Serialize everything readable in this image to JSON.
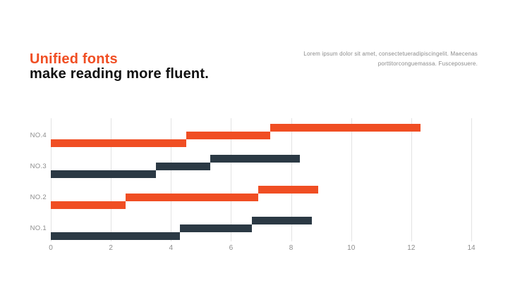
{
  "header": {
    "title_line1": "Unified fonts",
    "title_line2": "make reading more fluent.",
    "note_line1": "Lorem ipsum dolor sit amet, consectetueradipiscingelit. Maecenas",
    "note_line2": "porttitorconguemassa. Fusceposuere."
  },
  "colors": {
    "accent_orange": "#F04E23",
    "bar_dark": "#2B3944",
    "title_text": "#111111",
    "axis_text": "#8C8C8C",
    "note_text": "#8A8A8A",
    "gridline": "#E3E3E3",
    "background": "#FFFFFF"
  },
  "chart_data": {
    "type": "bar",
    "subtype": "stepped-horizontal-segments",
    "orientation": "horizontal",
    "title": "",
    "xlabel": "",
    "ylabel": "",
    "xlim": [
      0,
      14
    ],
    "x_ticks": [
      0,
      2,
      4,
      6,
      8,
      10,
      12,
      14
    ],
    "grid": "vertical-only",
    "legend": "none",
    "rows_top_to_bottom": [
      {
        "label": "NO.4",
        "color": "#F04E23",
        "segments": [
          [
            0,
            4.5
          ],
          [
            4.5,
            7.3
          ],
          [
            7.3,
            12.3
          ]
        ]
      },
      {
        "label": "NO.3",
        "color": "#2B3944",
        "segments": [
          [
            0,
            3.5
          ],
          [
            3.5,
            5.3
          ],
          [
            5.3,
            8.3
          ]
        ]
      },
      {
        "label": "NO.2",
        "color": "#F04E23",
        "segments": [
          [
            0,
            2.5
          ],
          [
            2.5,
            6.9
          ],
          [
            6.9,
            8.9
          ]
        ]
      },
      {
        "label": "NO.1",
        "color": "#2B3944",
        "segments": [
          [
            0,
            4.3
          ],
          [
            4.3,
            6.7
          ],
          [
            6.7,
            8.7
          ]
        ]
      }
    ]
  }
}
